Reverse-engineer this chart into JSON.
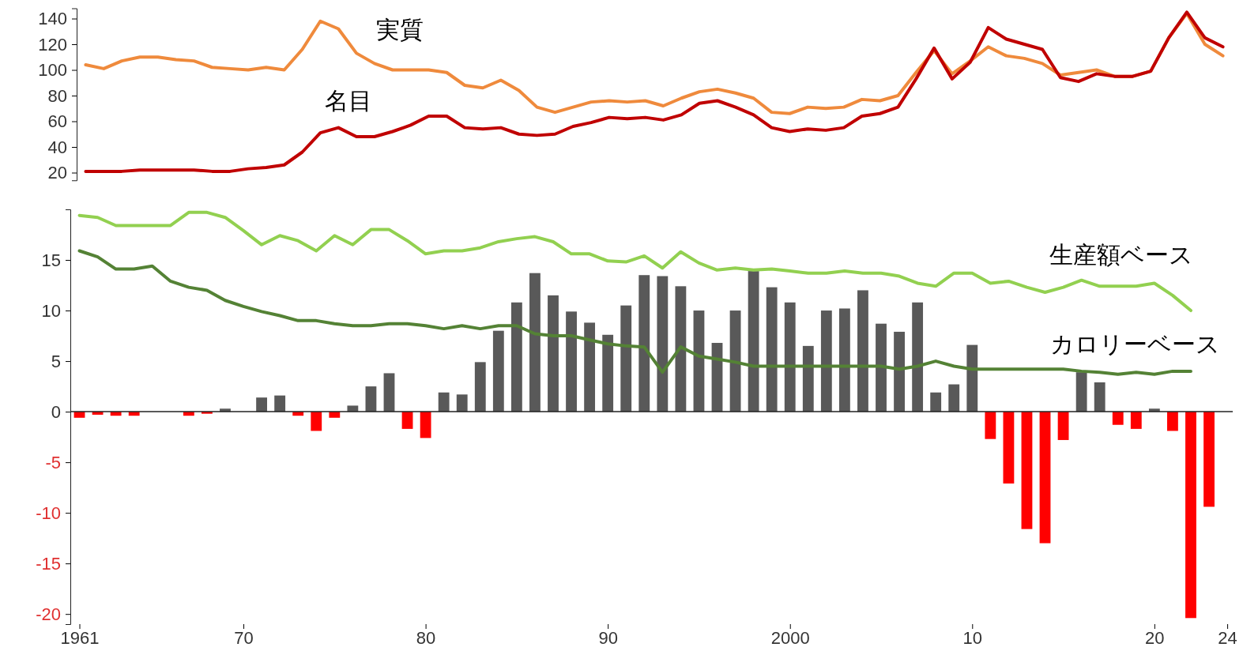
{
  "chart_data": [
    {
      "type": "line",
      "ylim": [
        14,
        148
      ],
      "yticks": [
        20,
        40,
        60,
        80,
        100,
        120,
        140
      ],
      "tick_labels": "y",
      "categories": [
        null,
        null,
        null,
        null,
        null,
        null,
        null,
        null,
        null,
        null,
        null,
        null,
        null,
        null,
        null,
        null,
        null,
        null,
        null,
        null,
        null,
        null,
        null,
        null,
        null,
        null,
        null,
        null,
        null,
        null,
        null,
        null,
        null,
        null,
        null,
        null,
        null,
        null,
        null,
        null,
        null,
        null,
        null,
        null,
        null,
        null,
        null,
        null,
        null,
        null,
        null,
        null,
        null,
        null,
        null,
        null,
        null,
        null,
        null,
        null,
        null,
        null,
        null,
        null
      ],
      "series": [
        {
          "name": "実質",
          "color": "#ef8a3c",
          "values": [
            104,
            101,
            107,
            110,
            110,
            108,
            107,
            102,
            101,
            100,
            102,
            100,
            116,
            138,
            132,
            113,
            105,
            100,
            100,
            100,
            98,
            88,
            86,
            92,
            84,
            71,
            67,
            71,
            75,
            76,
            75,
            76,
            72,
            78,
            83,
            85,
            82,
            78,
            67,
            66,
            71,
            70,
            71,
            77,
            76,
            80,
            98,
            115,
            97,
            107,
            118,
            111,
            109,
            105,
            96,
            98,
            100,
            95,
            95,
            99,
            125,
            144,
            120,
            111
          ]
        },
        {
          "name": "名目",
          "color": "#c00000",
          "values": [
            21,
            21,
            21,
            22,
            22,
            22,
            22,
            21,
            21,
            23,
            24,
            26,
            36,
            51,
            55,
            48,
            48,
            52,
            57,
            64,
            64,
            55,
            54,
            55,
            50,
            49,
            50,
            56,
            59,
            63,
            62,
            63,
            61,
            65,
            74,
            76,
            71,
            65,
            55,
            52,
            54,
            53,
            55,
            64,
            66,
            71,
            93,
            117,
            93,
            106,
            133,
            124,
            120,
            116,
            94,
            91,
            97,
            95,
            95,
            99,
            125,
            145,
            125,
            118
          ]
        }
      ]
    },
    {
      "type": "bar",
      "xlim": [
        1960.5,
        2024.3
      ],
      "ylim": [
        -21,
        20
      ],
      "yticks": [
        -20,
        -15,
        -10,
        -5,
        0,
        5,
        10,
        15
      ],
      "xticks": [
        {
          "value": 1961,
          "label": "1961"
        },
        {
          "value": 1970,
          "label": "70"
        },
        {
          "value": 1980,
          "label": "80"
        },
        {
          "value": 1990,
          "label": "90"
        },
        {
          "value": 2000,
          "label": "2000"
        },
        {
          "value": 2010,
          "label": "10"
        },
        {
          "value": 2020,
          "label": "20"
        },
        {
          "value": 2024,
          "label": "24"
        }
      ],
      "series": [
        {
          "x": [
            1961,
            1962,
            1963,
            1964,
            1965,
            1966,
            1967,
            1968,
            1969,
            1970,
            1971,
            1972,
            1973,
            1974,
            1975,
            1976,
            1977,
            1978,
            1979,
            1980,
            1981,
            1982,
            1983,
            1984,
            1985,
            1986,
            1987,
            1988,
            1989,
            1990,
            1991,
            1992,
            1993,
            1994,
            1995,
            1996,
            1997,
            1998,
            1999,
            2000,
            2001,
            2002,
            2003,
            2004,
            2005,
            2006,
            2007,
            2008,
            2009,
            2010,
            2011,
            2012,
            2013,
            2014,
            2015,
            2016,
            2017,
            2018,
            2019,
            2020,
            2021,
            2022,
            2023
          ],
          "values": [
            -0.6,
            -0.3,
            -0.4,
            -0.4,
            0,
            0,
            -0.4,
            -0.2,
            0.3,
            0,
            1.4,
            1.6,
            -0.4,
            -1.9,
            -0.6,
            0.6,
            2.5,
            3.8,
            -1.7,
            -2.6,
            1.9,
            1.7,
            4.9,
            8,
            10.8,
            13.7,
            11.5,
            9.9,
            8.8,
            7.6,
            10.5,
            13.5,
            13.4,
            12.4,
            10,
            6.8,
            10,
            13.9,
            12.3,
            10.8,
            6.5,
            10,
            10.2,
            12,
            8.7,
            7.9,
            10.8,
            1.9,
            2.7,
            6.6,
            -2.7,
            -7.1,
            -11.6,
            -13,
            -2.8,
            3.9,
            2.9,
            -1.3,
            -1.7,
            0.3,
            -1.9,
            -20.4,
            -9.4
          ],
          "colors": [
            "#ff0000",
            "#ff0000",
            "#ff0000",
            "#ff0000",
            "#595959",
            "#595959",
            "#ff0000",
            "#ff0000",
            "#595959",
            "#595959",
            "#595959",
            "#595959",
            "#ff0000",
            "#ff0000",
            "#ff0000",
            "#595959",
            "#595959",
            "#595959",
            "#ff0000",
            "#ff0000",
            "#595959",
            "#595959",
            "#595959",
            "#595959",
            "#595959",
            "#595959",
            "#595959",
            "#595959",
            "#595959",
            "#595959",
            "#595959",
            "#595959",
            "#595959",
            "#595959",
            "#595959",
            "#595959",
            "#595959",
            "#595959",
            "#595959",
            "#595959",
            "#595959",
            "#595959",
            "#595959",
            "#595959",
            "#595959",
            "#595959",
            "#595959",
            "#595959",
            "#595959",
            "#595959",
            "#ff0000",
            "#ff0000",
            "#ff0000",
            "#ff0000",
            "#ff0000",
            "#595959",
            "#595959",
            "#ff0000",
            "#ff0000",
            "#595959",
            "#ff0000",
            "#ff0000",
            "#ff0000"
          ]
        },
        {
          "type": "line",
          "name": "生産額ベース",
          "color": "#92d050",
          "x": [
            1961,
            1962,
            1963,
            1964,
            1965,
            1966,
            1967,
            1968,
            1969,
            1970,
            1971,
            1972,
            1973,
            1974,
            1975,
            1976,
            1977,
            1978,
            1979,
            1980,
            1981,
            1982,
            1983,
            1984,
            1985,
            1986,
            1987,
            1988,
            1989,
            1990,
            1991,
            1992,
            1993,
            1994,
            1995,
            1996,
            1997,
            1998,
            1999,
            2000,
            2001,
            2002,
            2003,
            2004,
            2005,
            2006,
            2007,
            2008,
            2009,
            2010,
            2011,
            2012,
            2013,
            2014,
            2015,
            2016,
            2017,
            2018,
            2019,
            2020,
            2021,
            2022
          ],
          "values": [
            19.4,
            19.2,
            18.4,
            18.4,
            18.4,
            18.4,
            19.7,
            19.7,
            19.2,
            17.9,
            16.5,
            17.4,
            16.9,
            15.9,
            17.4,
            16.5,
            18,
            18,
            16.9,
            15.6,
            15.9,
            15.9,
            16.2,
            16.8,
            17.1,
            17.3,
            16.8,
            15.6,
            15.6,
            14.9,
            14.8,
            15.4,
            14.2,
            15.8,
            14.7,
            14,
            14.2,
            14,
            14.1,
            13.9,
            13.7,
            13.7,
            13.9,
            13.7,
            13.7,
            13.4,
            12.7,
            12.4,
            13.7,
            13.7,
            12.7,
            12.9,
            12.3,
            11.8,
            12.3,
            13,
            12.4,
            12.4,
            12.4,
            12.7,
            11.5,
            10
          ]
        },
        {
          "type": "line",
          "name": "カロリーベース",
          "color": "#548235",
          "x": [
            1961,
            1962,
            1963,
            1964,
            1965,
            1966,
            1967,
            1968,
            1969,
            1970,
            1971,
            1972,
            1973,
            1974,
            1975,
            1976,
            1977,
            1978,
            1979,
            1980,
            1981,
            1982,
            1983,
            1984,
            1985,
            1986,
            1987,
            1988,
            1989,
            1990,
            1991,
            1992,
            1993,
            1994,
            1995,
            1996,
            1997,
            1998,
            1999,
            2000,
            2001,
            2002,
            2003,
            2004,
            2005,
            2006,
            2007,
            2008,
            2009,
            2010,
            2011,
            2012,
            2013,
            2014,
            2015,
            2016,
            2017,
            2018,
            2019,
            2020,
            2021,
            2022
          ],
          "values": [
            15.9,
            15.3,
            14.1,
            14.1,
            14.4,
            12.9,
            12.3,
            12,
            11,
            10.4,
            9.9,
            9.5,
            9,
            9,
            8.7,
            8.5,
            8.5,
            8.7,
            8.7,
            8.5,
            8.2,
            8.5,
            8.2,
            8.5,
            8.5,
            7.7,
            7.5,
            7.5,
            7.1,
            6.7,
            6.5,
            6.4,
            3.9,
            6.4,
            5.5,
            5.2,
            4.9,
            4.5,
            4.5,
            4.5,
            4.5,
            4.5,
            4.5,
            4.5,
            4.5,
            4.2,
            4.5,
            5,
            4.5,
            4.2,
            4.2,
            4.2,
            4.2,
            4.2,
            4.2,
            4,
            3.9,
            3.7,
            3.9,
            3.7,
            4,
            4
          ]
        }
      ]
    }
  ]
}
